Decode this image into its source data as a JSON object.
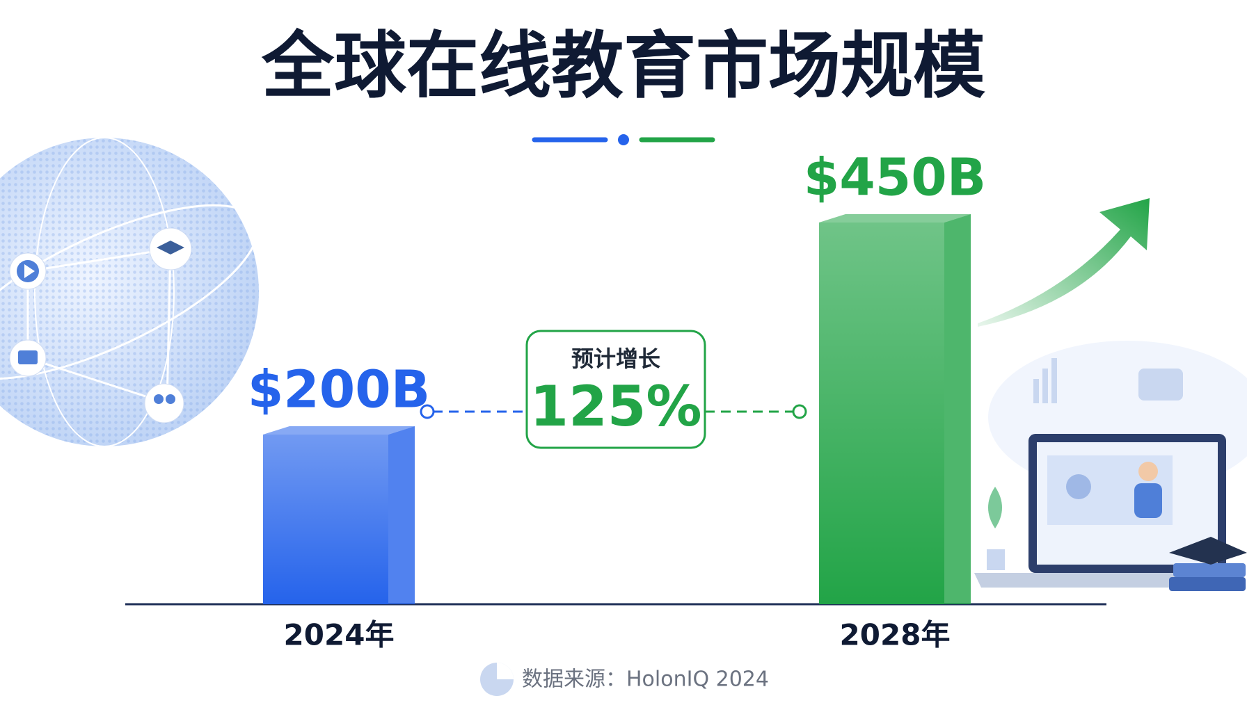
{
  "chart_data": {
    "type": "bar",
    "title": "全球在线教育市场规模",
    "categories": [
      "2024年",
      "2028年"
    ],
    "values": [
      200,
      450
    ],
    "value_labels": [
      "$200B",
      "$450B"
    ],
    "colors": [
      "#2563eb",
      "#22a447"
    ],
    "annotations": [
      {
        "text": "预计增长"
      },
      {
        "text": "125%"
      }
    ],
    "source": "数据来源：HolonIQ 2024"
  }
}
